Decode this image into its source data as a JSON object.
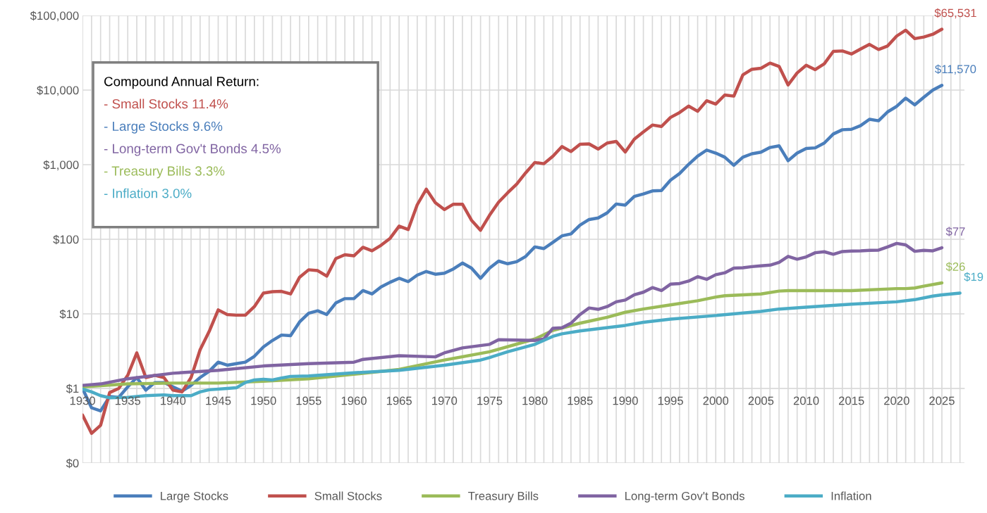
{
  "chart_data": {
    "type": "line",
    "log": "y",
    "grid": true,
    "legend": "bottom",
    "line_style": "solid",
    "marker": "none",
    "xlim": [
      1930,
      2027.5
    ],
    "xticks": [
      1930,
      {
        "value": 1931,
        "label": null
      },
      {
        "value": 1932,
        "label": null
      },
      {
        "value": 1933,
        "label": null
      },
      {
        "value": 1934,
        "label": null
      },
      1935,
      {
        "value": 1936,
        "label": null
      },
      {
        "value": 1937,
        "label": null
      },
      {
        "value": 1938,
        "label": null
      },
      {
        "value": 1939,
        "label": null
      },
      1940,
      {
        "value": 1941,
        "label": null
      },
      {
        "value": 1942,
        "label": null
      },
      {
        "value": 1943,
        "label": null
      },
      {
        "value": 1944,
        "label": null
      },
      1945,
      {
        "value": 1946,
        "label": null
      },
      {
        "value": 1947,
        "label": null
      },
      {
        "value": 1948,
        "label": null
      },
      {
        "value": 1949,
        "label": null
      },
      1950,
      {
        "value": 1951,
        "label": null
      },
      {
        "value": 1952,
        "label": null
      },
      {
        "value": 1953,
        "label": null
      },
      {
        "value": 1954,
        "label": null
      },
      1955,
      {
        "value": 1956,
        "label": null
      },
      {
        "value": 1957,
        "label": null
      },
      {
        "value": 1958,
        "label": null
      },
      {
        "value": 1959,
        "label": null
      },
      1960,
      {
        "value": 1961,
        "label": null
      },
      {
        "value": 1962,
        "label": null
      },
      {
        "value": 1963,
        "label": null
      },
      {
        "value": 1964,
        "label": null
      },
      1965,
      {
        "value": 1966,
        "label": null
      },
      {
        "value": 1967,
        "label": null
      },
      {
        "value": 1968,
        "label": null
      },
      {
        "value": 1969,
        "label": null
      },
      1970,
      {
        "value": 1971,
        "label": null
      },
      {
        "value": 1972,
        "label": null
      },
      {
        "value": 1973,
        "label": null
      },
      {
        "value": 1974,
        "label": null
      },
      1975,
      {
        "value": 1976,
        "label": null
      },
      {
        "value": 1977,
        "label": null
      },
      {
        "value": 1978,
        "label": null
      },
      {
        "value": 1979,
        "label": null
      },
      1980,
      {
        "value": 1981,
        "label": null
      },
      {
        "value": 1982,
        "label": null
      },
      {
        "value": 1983,
        "label": null
      },
      {
        "value": 1984,
        "label": null
      },
      1985,
      {
        "value": 1986,
        "label": null
      },
      {
        "value": 1987,
        "label": null
      },
      {
        "value": 1988,
        "label": null
      },
      {
        "value": 1989,
        "label": null
      },
      1990,
      {
        "value": 1991,
        "label": null
      },
      {
        "value": 1992,
        "label": null
      },
      {
        "value": 1993,
        "label": null
      },
      {
        "value": 1994,
        "label": null
      },
      1995,
      {
        "value": 1996,
        "label": null
      },
      {
        "value": 1997,
        "label": null
      },
      {
        "value": 1998,
        "label": null
      },
      {
        "value": 1999,
        "label": null
      },
      2000,
      {
        "value": 2001,
        "label": null
      },
      {
        "value": 2002,
        "label": null
      },
      {
        "value": 2003,
        "label": null
      },
      {
        "value": 2004,
        "label": null
      },
      2005,
      {
        "value": 2006,
        "label": null
      },
      {
        "value": 2007,
        "label": null
      },
      {
        "value": 2008,
        "label": null
      },
      {
        "value": 2009,
        "label": null
      },
      2010,
      {
        "value": 2011,
        "label": null
      },
      {
        "value": 2012,
        "label": null
      },
      {
        "value": 2013,
        "label": null
      },
      {
        "value": 2014,
        "label": null
      },
      2015,
      {
        "value": 2016,
        "label": null
      },
      {
        "value": 2017,
        "label": null
      },
      {
        "value": 2018,
        "label": null
      },
      {
        "value": 2019,
        "label": null
      },
      2020,
      {
        "value": 2021,
        "label": null
      },
      {
        "value": 2022,
        "label": null
      },
      {
        "value": 2023,
        "label": null
      },
      {
        "value": 2024,
        "label": null
      },
      2025,
      {
        "value": 2026,
        "label": null
      },
      {
        "value": 2027,
        "label": null
      }
    ],
    "ylim": [
      0.1,
      100000
    ],
    "yticks": [
      {
        "value": 0.1,
        "label": "$0"
      },
      {
        "value": 1,
        "label": "$1"
      },
      {
        "value": 10,
        "label": "$10"
      },
      {
        "value": 100,
        "label": "$100"
      },
      {
        "value": 1000,
        "label": "$1,000"
      },
      {
        "value": 10000,
        "label": "$10,000"
      },
      {
        "value": 100000,
        "label": "$100,000"
      }
    ],
    "annotations": [
      "Compound Annual Return:",
      "- Small Stocks 11.4%",
      "- Large Stocks 9.6%",
      "- Long-term Gov't Bonds 4.5%",
      "- Treasury Bills 3.3%",
      "- Inflation 3.0%"
    ],
    "series": [
      {
        "name": "Large Stocks",
        "color": "#4a7ebb",
        "x": [
          1930,
          1931,
          1932,
          1933,
          1934,
          1935,
          1936,
          1937,
          1938,
          1939,
          1940,
          1941,
          1942,
          1943,
          1944,
          1945,
          1946,
          1947,
          1948,
          1949,
          1950,
          1951,
          1952,
          1953,
          1954,
          1955,
          1956,
          1957,
          1958,
          1959,
          1960,
          1961,
          1962,
          1963,
          1964,
          1965,
          1966,
          1967,
          1968,
          1969,
          1970,
          1971,
          1972,
          1973,
          1974,
          1975,
          1976,
          1977,
          1978,
          1979,
          1980,
          1981,
          1982,
          1983,
          1984,
          1985,
          1986,
          1987,
          1988,
          1989,
          1990,
          1991,
          1992,
          1993,
          1994,
          1995,
          1996,
          1997,
          1998,
          1999,
          2000,
          2001,
          2002,
          2003,
          2004,
          2005,
          2006,
          2007,
          2008,
          2009,
          2010,
          2011,
          2012,
          2013,
          2014,
          2015,
          2016,
          2017,
          2018,
          2019,
          2020,
          2021,
          2022,
          2023,
          2024,
          2025
        ],
        "values": [
          1.0,
          0.55,
          0.5,
          0.78,
          0.76,
          1.05,
          1.4,
          0.95,
          1.2,
          1.2,
          1.05,
          0.92,
          1.1,
          1.4,
          1.7,
          2.25,
          2.05,
          2.15,
          2.25,
          2.7,
          3.6,
          4.4,
          5.2,
          5.1,
          7.8,
          10.2,
          11,
          9.8,
          14,
          16,
          16,
          20.5,
          18.5,
          23,
          26.5,
          30,
          27,
          33,
          37,
          34,
          35,
          40,
          48,
          41,
          30,
          41,
          51,
          47,
          50,
          59,
          79,
          75,
          91,
          111,
          118,
          155,
          184,
          193,
          226,
          297,
          287,
          375,
          405,
          445,
          450,
          620,
          760,
          1010,
          1300,
          1570,
          1430,
          1260,
          980,
          1260,
          1400,
          1470,
          1700,
          1790,
          1130,
          1430,
          1650,
          1680,
          1950,
          2580,
          2940,
          2980,
          3330,
          4060,
          3880,
          5100,
          6050,
          7800,
          6350,
          8000,
          10000,
          11570
        ],
        "value_labels": [
          null,
          null,
          null,
          null,
          null,
          null,
          null,
          null,
          null,
          null,
          null,
          null,
          null,
          null,
          null,
          null,
          null,
          null,
          null,
          null,
          null,
          null,
          null,
          null,
          null,
          null,
          null,
          null,
          null,
          null,
          null,
          null,
          null,
          null,
          null,
          null,
          null,
          null,
          null,
          null,
          null,
          null,
          null,
          null,
          null,
          null,
          null,
          null,
          null,
          null,
          null,
          null,
          null,
          null,
          null,
          null,
          null,
          null,
          null,
          null,
          null,
          null,
          null,
          null,
          null,
          null,
          null,
          null,
          null,
          null,
          null,
          null,
          null,
          null,
          null,
          null,
          null,
          null,
          null,
          null,
          null,
          null,
          null,
          null,
          null,
          null,
          null,
          null,
          null,
          null,
          null,
          null,
          null,
          null,
          null,
          "$11,570"
        ]
      },
      {
        "name": "Small Stocks",
        "color": "#c0504d",
        "x": [
          1930,
          1931,
          1932,
          1933,
          1934,
          1935,
          1936,
          1937,
          1938,
          1939,
          1940,
          1941,
          1942,
          1943,
          1944,
          1945,
          1946,
          1947,
          1948,
          1949,
          1950,
          1951,
          1952,
          1953,
          1954,
          1955,
          1956,
          1957,
          1958,
          1959,
          1960,
          1961,
          1962,
          1963,
          1964,
          1965,
          1966,
          1967,
          1968,
          1969,
          1970,
          1971,
          1972,
          1973,
          1974,
          1975,
          1976,
          1977,
          1978,
          1979,
          1980,
          1981,
          1982,
          1983,
          1984,
          1985,
          1986,
          1987,
          1988,
          1989,
          1990,
          1991,
          1992,
          1993,
          1994,
          1995,
          1996,
          1997,
          1998,
          1999,
          2000,
          2001,
          2002,
          2003,
          2004,
          2005,
          2006,
          2007,
          2008,
          2009,
          2010,
          2011,
          2012,
          2013,
          2014,
          2015,
          2016,
          2017,
          2018,
          2019,
          2020,
          2021,
          2022,
          2023,
          2024,
          2025
        ],
        "values": [
          0.44,
          0.25,
          0.32,
          0.88,
          1.0,
          1.5,
          3.0,
          1.4,
          1.5,
          1.4,
          0.95,
          0.9,
          1.4,
          3.3,
          5.8,
          11.3,
          9.8,
          9.6,
          9.6,
          12.5,
          19,
          19.8,
          20,
          18.5,
          31,
          39,
          38,
          32,
          55,
          62,
          60,
          78,
          70,
          83,
          103,
          150,
          135,
          290,
          470,
          310,
          250,
          295,
          295,
          180,
          132,
          210,
          315,
          420,
          550,
          780,
          1070,
          1030,
          1300,
          1750,
          1500,
          1880,
          1900,
          1620,
          1950,
          2050,
          1480,
          2200,
          2750,
          3400,
          3250,
          4300,
          5000,
          6100,
          5200,
          7200,
          6500,
          8600,
          8300,
          16000,
          19000,
          19600,
          23000,
          20800,
          11700,
          17000,
          21500,
          18800,
          22500,
          33000,
          33500,
          30500,
          35500,
          41000,
          35000,
          39000,
          53000,
          63500,
          49000,
          51500,
          56000,
          65531
        ],
        "value_labels": [
          null,
          null,
          null,
          null,
          null,
          null,
          null,
          null,
          null,
          null,
          null,
          null,
          null,
          null,
          null,
          null,
          null,
          null,
          null,
          null,
          null,
          null,
          null,
          null,
          null,
          null,
          null,
          null,
          null,
          null,
          null,
          null,
          null,
          null,
          null,
          null,
          null,
          null,
          null,
          null,
          null,
          null,
          null,
          null,
          null,
          null,
          null,
          null,
          null,
          null,
          null,
          null,
          null,
          null,
          null,
          null,
          null,
          null,
          null,
          null,
          null,
          null,
          null,
          null,
          null,
          null,
          null,
          null,
          null,
          null,
          null,
          null,
          null,
          null,
          null,
          null,
          null,
          null,
          null,
          null,
          null,
          null,
          null,
          null,
          null,
          null,
          null,
          null,
          null,
          null,
          null,
          null,
          null,
          null,
          null,
          "$65,531"
        ]
      },
      {
        "name": "Treasury Bills",
        "color": "#9bbb59",
        "x": [
          1930,
          1935,
          1940,
          1945,
          1950,
          1955,
          1960,
          1965,
          1970,
          1975,
          1980,
          1982,
          1985,
          1988,
          1990,
          1992,
          1995,
          1998,
          2000,
          2001,
          2005,
          2007,
          2008,
          2015,
          2020,
          2021,
          2022,
          2023,
          2025
        ],
        "values": [
          1.05,
          1.15,
          1.18,
          1.18,
          1.25,
          1.35,
          1.55,
          1.8,
          2.4,
          3.1,
          4.6,
          6.0,
          7.5,
          9.0,
          10.5,
          11.6,
          13.2,
          15.0,
          16.8,
          17.5,
          18.5,
          20.2,
          20.5,
          20.5,
          21.8,
          21.8,
          22.2,
          23.5,
          26
        ],
        "value_labels": [
          null,
          null,
          null,
          null,
          null,
          null,
          null,
          null,
          null,
          null,
          null,
          null,
          null,
          null,
          null,
          null,
          null,
          null,
          null,
          null,
          null,
          null,
          null,
          null,
          null,
          null,
          null,
          null,
          "$26"
        ]
      },
      {
        "name": "Long-term Gov't Bonds",
        "color": "#8064a2",
        "x": [
          1930,
          1932,
          1935,
          1940,
          1945,
          1950,
          1955,
          1960,
          1961,
          1965,
          1969,
          1970,
          1972,
          1975,
          1976,
          1980,
          1981,
          1982,
          1983,
          1984,
          1985,
          1986,
          1987,
          1988,
          1989,
          1990,
          1991,
          1992,
          1993,
          1994,
          1995,
          1996,
          1997,
          1998,
          1999,
          2000,
          2001,
          2002,
          2003,
          2004,
          2005,
          2006,
          2007,
          2008,
          2009,
          2010,
          2011,
          2012,
          2013,
          2014,
          2015,
          2016,
          2017,
          2018,
          2019,
          2020,
          2021,
          2022,
          2023,
          2024,
          2025
        ],
        "values": [
          1.1,
          1.15,
          1.35,
          1.6,
          1.75,
          2.0,
          2.15,
          2.25,
          2.45,
          2.75,
          2.65,
          3.0,
          3.5,
          3.9,
          4.5,
          4.4,
          4.6,
          6.4,
          6.5,
          7.5,
          9.8,
          12,
          11.5,
          12.5,
          14.5,
          15.3,
          18,
          19.5,
          22.5,
          20.5,
          25,
          25.5,
          27.5,
          31.5,
          29,
          33.5,
          35.5,
          41,
          41.5,
          43,
          44,
          45,
          49,
          59,
          54,
          58,
          66,
          68,
          63,
          68.5,
          69.5,
          70,
          71,
          71.5,
          79,
          88,
          84,
          69,
          71,
          70,
          77
        ],
        "value_labels": [
          null,
          null,
          null,
          null,
          null,
          null,
          null,
          null,
          null,
          null,
          null,
          null,
          null,
          null,
          null,
          null,
          null,
          null,
          null,
          null,
          null,
          null,
          null,
          null,
          null,
          null,
          null,
          null,
          null,
          null,
          null,
          null,
          null,
          null,
          null,
          null,
          null,
          null,
          null,
          null,
          null,
          null,
          null,
          null,
          null,
          null,
          null,
          null,
          null,
          null,
          null,
          null,
          null,
          null,
          null,
          null,
          null,
          null,
          null,
          null,
          "$77"
        ]
      },
      {
        "name": "Inflation",
        "color": "#4bacc6",
        "x": [
          1930,
          1931,
          1932,
          1933,
          1935,
          1937,
          1939,
          1940,
          1942,
          1943,
          1944,
          1946,
          1947,
          1948,
          1949,
          1950,
          1951,
          1952,
          1953,
          1955,
          1960,
          1965,
          1970,
          1974,
          1975,
          1977,
          1980,
          1982,
          1983,
          1985,
          1990,
          1992,
          1995,
          2000,
          2005,
          2007,
          2010,
          2015,
          2020,
          2022,
          2024,
          2025,
          2027
        ],
        "values": [
          0.98,
          0.9,
          0.8,
          0.75,
          0.76,
          0.8,
          0.82,
          0.8,
          0.8,
          0.9,
          0.96,
          1.0,
          1.02,
          1.2,
          1.3,
          1.33,
          1.3,
          1.38,
          1.45,
          1.47,
          1.62,
          1.75,
          2.05,
          2.4,
          2.6,
          3.1,
          3.9,
          5.0,
          5.4,
          5.9,
          7.0,
          7.7,
          8.5,
          9.5,
          10.8,
          11.6,
          12.3,
          13.5,
          14.5,
          15.5,
          17.3,
          18,
          19
        ],
        "value_labels": [
          null,
          null,
          null,
          null,
          null,
          null,
          null,
          null,
          null,
          null,
          null,
          null,
          null,
          null,
          null,
          null,
          null,
          null,
          null,
          null,
          null,
          null,
          null,
          null,
          null,
          null,
          null,
          null,
          null,
          null,
          null,
          null,
          null,
          null,
          null,
          null,
          null,
          null,
          null,
          null,
          null,
          null,
          "$19"
        ]
      }
    ]
  }
}
